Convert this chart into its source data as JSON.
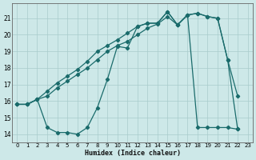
{
  "bg_color": "#cde8e8",
  "grid_color": "#a8cccc",
  "line_color": "#1a6b6b",
  "xlabel": "Humidex (Indice chaleur)",
  "xlim": [
    -0.5,
    23.5
  ],
  "ylim": [
    13.5,
    21.9
  ],
  "yticks": [
    14,
    15,
    16,
    17,
    18,
    19,
    20,
    21
  ],
  "xticks": [
    0,
    1,
    2,
    3,
    4,
    5,
    6,
    7,
    8,
    9,
    10,
    11,
    12,
    13,
    14,
    15,
    16,
    17,
    18,
    19,
    20,
    21,
    22,
    23
  ],
  "line1_x": [
    0,
    1,
    2,
    3,
    4,
    5,
    6,
    7,
    8,
    9,
    10,
    11,
    12,
    13,
    14,
    15,
    16,
    17,
    18,
    19,
    20,
    21,
    22
  ],
  "line1_y": [
    15.8,
    15.8,
    16.1,
    16.3,
    16.8,
    17.2,
    17.6,
    18.0,
    18.5,
    19.0,
    19.35,
    19.6,
    20.0,
    20.4,
    20.65,
    21.1,
    20.6,
    21.2,
    21.3,
    21.1,
    21.0,
    18.5,
    14.3
  ],
  "line2_x": [
    0,
    1,
    2,
    3,
    4,
    5,
    6,
    7,
    8,
    9,
    10,
    11,
    12,
    13,
    14,
    15,
    16,
    17,
    18,
    19,
    20,
    21,
    22
  ],
  "line2_y": [
    15.8,
    15.8,
    16.1,
    16.6,
    17.1,
    17.5,
    17.9,
    18.4,
    19.0,
    19.35,
    19.7,
    20.1,
    20.5,
    20.7,
    20.7,
    21.4,
    20.6,
    21.2,
    21.3,
    21.1,
    21.0,
    18.5,
    16.3
  ],
  "line3_x": [
    0,
    1,
    2,
    3,
    4,
    5,
    6,
    7,
    8,
    9,
    10,
    11,
    12,
    13,
    14,
    15,
    16,
    17,
    18,
    19,
    20,
    21,
    22
  ],
  "line3_y": [
    15.8,
    15.8,
    16.1,
    14.4,
    14.1,
    14.1,
    14.0,
    14.4,
    15.6,
    17.3,
    19.3,
    19.2,
    20.5,
    20.7,
    20.7,
    21.4,
    20.6,
    21.2,
    14.4,
    14.4,
    14.4,
    14.4,
    14.3
  ]
}
